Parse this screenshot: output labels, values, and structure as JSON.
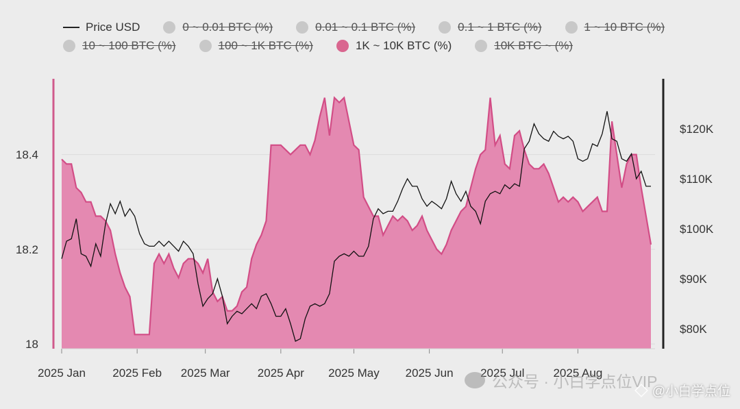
{
  "legend": {
    "items": [
      {
        "label": "Price USD",
        "kind": "line",
        "active": true,
        "color": "#222222"
      },
      {
        "label": "0 ~ 0.01 BTC (%)",
        "kind": "dot",
        "active": false,
        "color": "#c8c8c8"
      },
      {
        "label": "0.01 ~ 0.1 BTC (%)",
        "kind": "dot",
        "active": false,
        "color": "#c8c8c8"
      },
      {
        "label": "0.1 ~ 1 BTC (%)",
        "kind": "dot",
        "active": false,
        "color": "#c8c8c8"
      },
      {
        "label": "1 ~ 10 BTC (%)",
        "kind": "dot",
        "active": false,
        "color": "#c8c8c8"
      },
      {
        "label": "10 ~ 100 BTC (%)",
        "kind": "dot",
        "active": false,
        "color": "#c8c8c8"
      },
      {
        "label": "100 ~ 1K BTC (%)",
        "kind": "dot",
        "active": false,
        "color": "#c8c8c8"
      },
      {
        "label": "1K ~ 10K BTC (%)",
        "kind": "dot",
        "active": true,
        "color": "#d9668f"
      },
      {
        "label": "10K BTC ~ (%)",
        "kind": "dot",
        "active": false,
        "color": "#c8c8c8"
      }
    ]
  },
  "watermark": {
    "faint": "公众号 · 小白学点位VIP",
    "corner": "@小白学点位"
  },
  "chart_data": {
    "type": "area",
    "x_ticks": [
      "2025 Jan",
      "2025 Feb",
      "2025 Mar",
      "2025 Apr",
      "2025 May",
      "2025 Jun",
      "2025 Jul",
      "2025 Aug"
    ],
    "x_range": [
      "2025-01-01",
      "2025-08-31"
    ],
    "y_left": {
      "ticks": [
        "18",
        "18.2",
        "18.4"
      ],
      "range": [
        17.99,
        18.56
      ]
    },
    "y_right": {
      "ticks": [
        "$80K",
        "$90K",
        "$100K",
        "$110K",
        "$120K"
      ],
      "range": [
        76000,
        130000
      ]
    },
    "grid": true,
    "legend_position": "top",
    "colors": {
      "share_fill": "#e489b1",
      "share_line": "#d24d86",
      "price_line": "#111111",
      "left_axis": "#cf5a8c",
      "right_axis": "#222222"
    },
    "series": [
      {
        "name": "1K ~ 10K BTC (%)",
        "axis": "left",
        "type": "area",
        "points": [
          [
            "2025-01-01",
            18.39
          ],
          [
            "2025-01-03",
            18.38
          ],
          [
            "2025-01-05",
            18.38
          ],
          [
            "2025-01-07",
            18.33
          ],
          [
            "2025-01-09",
            18.32
          ],
          [
            "2025-01-11",
            18.3
          ],
          [
            "2025-01-13",
            18.3
          ],
          [
            "2025-01-15",
            18.27
          ],
          [
            "2025-01-17",
            18.27
          ],
          [
            "2025-01-19",
            18.26
          ],
          [
            "2025-01-21",
            18.24
          ],
          [
            "2025-01-23",
            18.19
          ],
          [
            "2025-01-25",
            18.15
          ],
          [
            "2025-01-27",
            18.12
          ],
          [
            "2025-01-29",
            18.1
          ],
          [
            "2025-01-31",
            18.02
          ],
          [
            "2025-02-02",
            18.02
          ],
          [
            "2025-02-04",
            18.02
          ],
          [
            "2025-02-06",
            18.02
          ],
          [
            "2025-02-08",
            18.17
          ],
          [
            "2025-02-10",
            18.19
          ],
          [
            "2025-02-12",
            18.17
          ],
          [
            "2025-02-14",
            18.19
          ],
          [
            "2025-02-16",
            18.16
          ],
          [
            "2025-02-18",
            18.14
          ],
          [
            "2025-02-20",
            18.17
          ],
          [
            "2025-02-22",
            18.18
          ],
          [
            "2025-02-24",
            18.18
          ],
          [
            "2025-02-26",
            18.17
          ],
          [
            "2025-02-28",
            18.15
          ],
          [
            "2025-03-02",
            18.18
          ],
          [
            "2025-03-04",
            18.11
          ],
          [
            "2025-03-06",
            18.09
          ],
          [
            "2025-03-08",
            18.1
          ],
          [
            "2025-03-10",
            18.07
          ],
          [
            "2025-03-12",
            18.07
          ],
          [
            "2025-03-14",
            18.08
          ],
          [
            "2025-03-16",
            18.11
          ],
          [
            "2025-03-18",
            18.12
          ],
          [
            "2025-03-20",
            18.18
          ],
          [
            "2025-03-22",
            18.21
          ],
          [
            "2025-03-24",
            18.23
          ],
          [
            "2025-03-26",
            18.26
          ],
          [
            "2025-03-28",
            18.42
          ],
          [
            "2025-03-30",
            18.42
          ],
          [
            "2025-04-01",
            18.42
          ],
          [
            "2025-04-03",
            18.41
          ],
          [
            "2025-04-05",
            18.4
          ],
          [
            "2025-04-07",
            18.41
          ],
          [
            "2025-04-09",
            18.42
          ],
          [
            "2025-04-11",
            18.42
          ],
          [
            "2025-04-13",
            18.4
          ],
          [
            "2025-04-15",
            18.43
          ],
          [
            "2025-04-17",
            18.48
          ],
          [
            "2025-04-19",
            18.52
          ],
          [
            "2025-04-21",
            18.44
          ],
          [
            "2025-04-23",
            18.52
          ],
          [
            "2025-04-25",
            18.51
          ],
          [
            "2025-04-27",
            18.52
          ],
          [
            "2025-04-29",
            18.47
          ],
          [
            "2025-05-01",
            18.42
          ],
          [
            "2025-05-03",
            18.41
          ],
          [
            "2025-05-05",
            18.31
          ],
          [
            "2025-05-07",
            18.29
          ],
          [
            "2025-05-09",
            18.27
          ],
          [
            "2025-05-11",
            18.27
          ],
          [
            "2025-05-13",
            18.23
          ],
          [
            "2025-05-15",
            18.25
          ],
          [
            "2025-05-17",
            18.27
          ],
          [
            "2025-05-19",
            18.26
          ],
          [
            "2025-05-21",
            18.27
          ],
          [
            "2025-05-23",
            18.26
          ],
          [
            "2025-05-25",
            18.24
          ],
          [
            "2025-05-27",
            18.25
          ],
          [
            "2025-05-29",
            18.27
          ],
          [
            "2025-05-31",
            18.24
          ],
          [
            "2025-06-02",
            18.22
          ],
          [
            "2025-06-04",
            18.2
          ],
          [
            "2025-06-06",
            18.19
          ],
          [
            "2025-06-08",
            18.21
          ],
          [
            "2025-06-10",
            18.24
          ],
          [
            "2025-06-12",
            18.26
          ],
          [
            "2025-06-14",
            18.28
          ],
          [
            "2025-06-16",
            18.29
          ],
          [
            "2025-06-18",
            18.33
          ],
          [
            "2025-06-20",
            18.37
          ],
          [
            "2025-06-22",
            18.4
          ],
          [
            "2025-06-24",
            18.41
          ],
          [
            "2025-06-26",
            18.52
          ],
          [
            "2025-06-28",
            18.42
          ],
          [
            "2025-06-30",
            18.44
          ],
          [
            "2025-07-02",
            18.38
          ],
          [
            "2025-07-04",
            18.37
          ],
          [
            "2025-07-06",
            18.44
          ],
          [
            "2025-07-08",
            18.45
          ],
          [
            "2025-07-10",
            18.41
          ],
          [
            "2025-07-12",
            18.38
          ],
          [
            "2025-07-14",
            18.37
          ],
          [
            "2025-07-16",
            18.37
          ],
          [
            "2025-07-18",
            18.38
          ],
          [
            "2025-07-20",
            18.36
          ],
          [
            "2025-07-22",
            18.33
          ],
          [
            "2025-07-24",
            18.3
          ],
          [
            "2025-07-26",
            18.31
          ],
          [
            "2025-07-28",
            18.3
          ],
          [
            "2025-07-30",
            18.31
          ],
          [
            "2025-08-01",
            18.3
          ],
          [
            "2025-08-03",
            18.28
          ],
          [
            "2025-08-05",
            18.29
          ],
          [
            "2025-08-07",
            18.3
          ],
          [
            "2025-08-09",
            18.31
          ],
          [
            "2025-08-11",
            18.28
          ],
          [
            "2025-08-13",
            18.28
          ],
          [
            "2025-08-15",
            18.47
          ],
          [
            "2025-08-17",
            18.4
          ],
          [
            "2025-08-19",
            18.33
          ],
          [
            "2025-08-21",
            18.38
          ],
          [
            "2025-08-23",
            18.4
          ],
          [
            "2025-08-25",
            18.4
          ],
          [
            "2025-08-27",
            18.33
          ],
          [
            "2025-08-29",
            18.27
          ],
          [
            "2025-08-31",
            18.21
          ]
        ]
      },
      {
        "name": "Price USD",
        "axis": "right",
        "type": "line",
        "points": [
          [
            "2025-01-01",
            94000
          ],
          [
            "2025-01-03",
            97500
          ],
          [
            "2025-01-05",
            98000
          ],
          [
            "2025-01-07",
            102000
          ],
          [
            "2025-01-09",
            95000
          ],
          [
            "2025-01-11",
            94500
          ],
          [
            "2025-01-13",
            92500
          ],
          [
            "2025-01-15",
            97000
          ],
          [
            "2025-01-17",
            94500
          ],
          [
            "2025-01-19",
            101000
          ],
          [
            "2025-01-21",
            105000
          ],
          [
            "2025-01-23",
            103000
          ],
          [
            "2025-01-25",
            105500
          ],
          [
            "2025-01-27",
            102500
          ],
          [
            "2025-01-29",
            104000
          ],
          [
            "2025-01-31",
            102500
          ],
          [
            "2025-02-02",
            99000
          ],
          [
            "2025-02-04",
            97000
          ],
          [
            "2025-02-06",
            96500
          ],
          [
            "2025-02-08",
            96500
          ],
          [
            "2025-02-10",
            97500
          ],
          [
            "2025-02-12",
            96500
          ],
          [
            "2025-02-14",
            97500
          ],
          [
            "2025-02-16",
            96500
          ],
          [
            "2025-02-18",
            95500
          ],
          [
            "2025-02-20",
            97500
          ],
          [
            "2025-02-22",
            96500
          ],
          [
            "2025-02-24",
            95000
          ],
          [
            "2025-02-26",
            89000
          ],
          [
            "2025-02-28",
            84500
          ],
          [
            "2025-03-02",
            86000
          ],
          [
            "2025-03-04",
            87000
          ],
          [
            "2025-03-06",
            90000
          ],
          [
            "2025-03-08",
            86500
          ],
          [
            "2025-03-10",
            81000
          ],
          [
            "2025-03-12",
            82500
          ],
          [
            "2025-03-14",
            83500
          ],
          [
            "2025-03-16",
            83000
          ],
          [
            "2025-03-18",
            84000
          ],
          [
            "2025-03-20",
            85000
          ],
          [
            "2025-03-22",
            84000
          ],
          [
            "2025-03-24",
            86500
          ],
          [
            "2025-03-26",
            87000
          ],
          [
            "2025-03-28",
            85000
          ],
          [
            "2025-03-30",
            82500
          ],
          [
            "2025-04-01",
            82500
          ],
          [
            "2025-04-03",
            84000
          ],
          [
            "2025-04-05",
            81000
          ],
          [
            "2025-04-07",
            77500
          ],
          [
            "2025-04-09",
            78000
          ],
          [
            "2025-04-11",
            82000
          ],
          [
            "2025-04-13",
            84500
          ],
          [
            "2025-04-15",
            85000
          ],
          [
            "2025-04-17",
            84500
          ],
          [
            "2025-04-19",
            85000
          ],
          [
            "2025-04-21",
            87000
          ],
          [
            "2025-04-23",
            93500
          ],
          [
            "2025-04-25",
            94500
          ],
          [
            "2025-04-27",
            95000
          ],
          [
            "2025-04-29",
            94500
          ],
          [
            "2025-05-01",
            95500
          ],
          [
            "2025-05-03",
            94500
          ],
          [
            "2025-05-05",
            94500
          ],
          [
            "2025-05-07",
            96500
          ],
          [
            "2025-05-09",
            102000
          ],
          [
            "2025-05-11",
            104000
          ],
          [
            "2025-05-13",
            103000
          ],
          [
            "2025-05-15",
            103500
          ],
          [
            "2025-05-17",
            103500
          ],
          [
            "2025-05-19",
            105500
          ],
          [
            "2025-05-21",
            108000
          ],
          [
            "2025-05-23",
            110000
          ],
          [
            "2025-05-25",
            108500
          ],
          [
            "2025-05-27",
            108500
          ],
          [
            "2025-05-29",
            106000
          ],
          [
            "2025-05-31",
            104500
          ],
          [
            "2025-06-02",
            105500
          ],
          [
            "2025-06-04",
            104800
          ],
          [
            "2025-06-06",
            104000
          ],
          [
            "2025-06-08",
            106000
          ],
          [
            "2025-06-10",
            109500
          ],
          [
            "2025-06-12",
            107000
          ],
          [
            "2025-06-14",
            105500
          ],
          [
            "2025-06-16",
            107500
          ],
          [
            "2025-06-18",
            104500
          ],
          [
            "2025-06-20",
            103500
          ],
          [
            "2025-06-22",
            101000
          ],
          [
            "2025-06-24",
            105500
          ],
          [
            "2025-06-26",
            107000
          ],
          [
            "2025-06-28",
            107500
          ],
          [
            "2025-06-30",
            107000
          ],
          [
            "2025-07-02",
            108800
          ],
          [
            "2025-07-04",
            108000
          ],
          [
            "2025-07-06",
            109000
          ],
          [
            "2025-07-08",
            108500
          ],
          [
            "2025-07-10",
            116000
          ],
          [
            "2025-07-12",
            117500
          ],
          [
            "2025-07-14",
            121000
          ],
          [
            "2025-07-16",
            119000
          ],
          [
            "2025-07-18",
            118000
          ],
          [
            "2025-07-20",
            117500
          ],
          [
            "2025-07-22",
            119500
          ],
          [
            "2025-07-24",
            118500
          ],
          [
            "2025-07-26",
            118000
          ],
          [
            "2025-07-28",
            118500
          ],
          [
            "2025-07-30",
            117500
          ],
          [
            "2025-08-01",
            114000
          ],
          [
            "2025-08-03",
            113500
          ],
          [
            "2025-08-05",
            114000
          ],
          [
            "2025-08-07",
            117000
          ],
          [
            "2025-08-09",
            116500
          ],
          [
            "2025-08-11",
            119000
          ],
          [
            "2025-08-13",
            123500
          ],
          [
            "2025-08-15",
            118000
          ],
          [
            "2025-08-17",
            117500
          ],
          [
            "2025-08-19",
            114000
          ],
          [
            "2025-08-21",
            113500
          ],
          [
            "2025-08-23",
            115000
          ],
          [
            "2025-08-25",
            110000
          ],
          [
            "2025-08-27",
            111500
          ],
          [
            "2025-08-29",
            108500
          ],
          [
            "2025-08-31",
            108500
          ]
        ]
      }
    ]
  }
}
